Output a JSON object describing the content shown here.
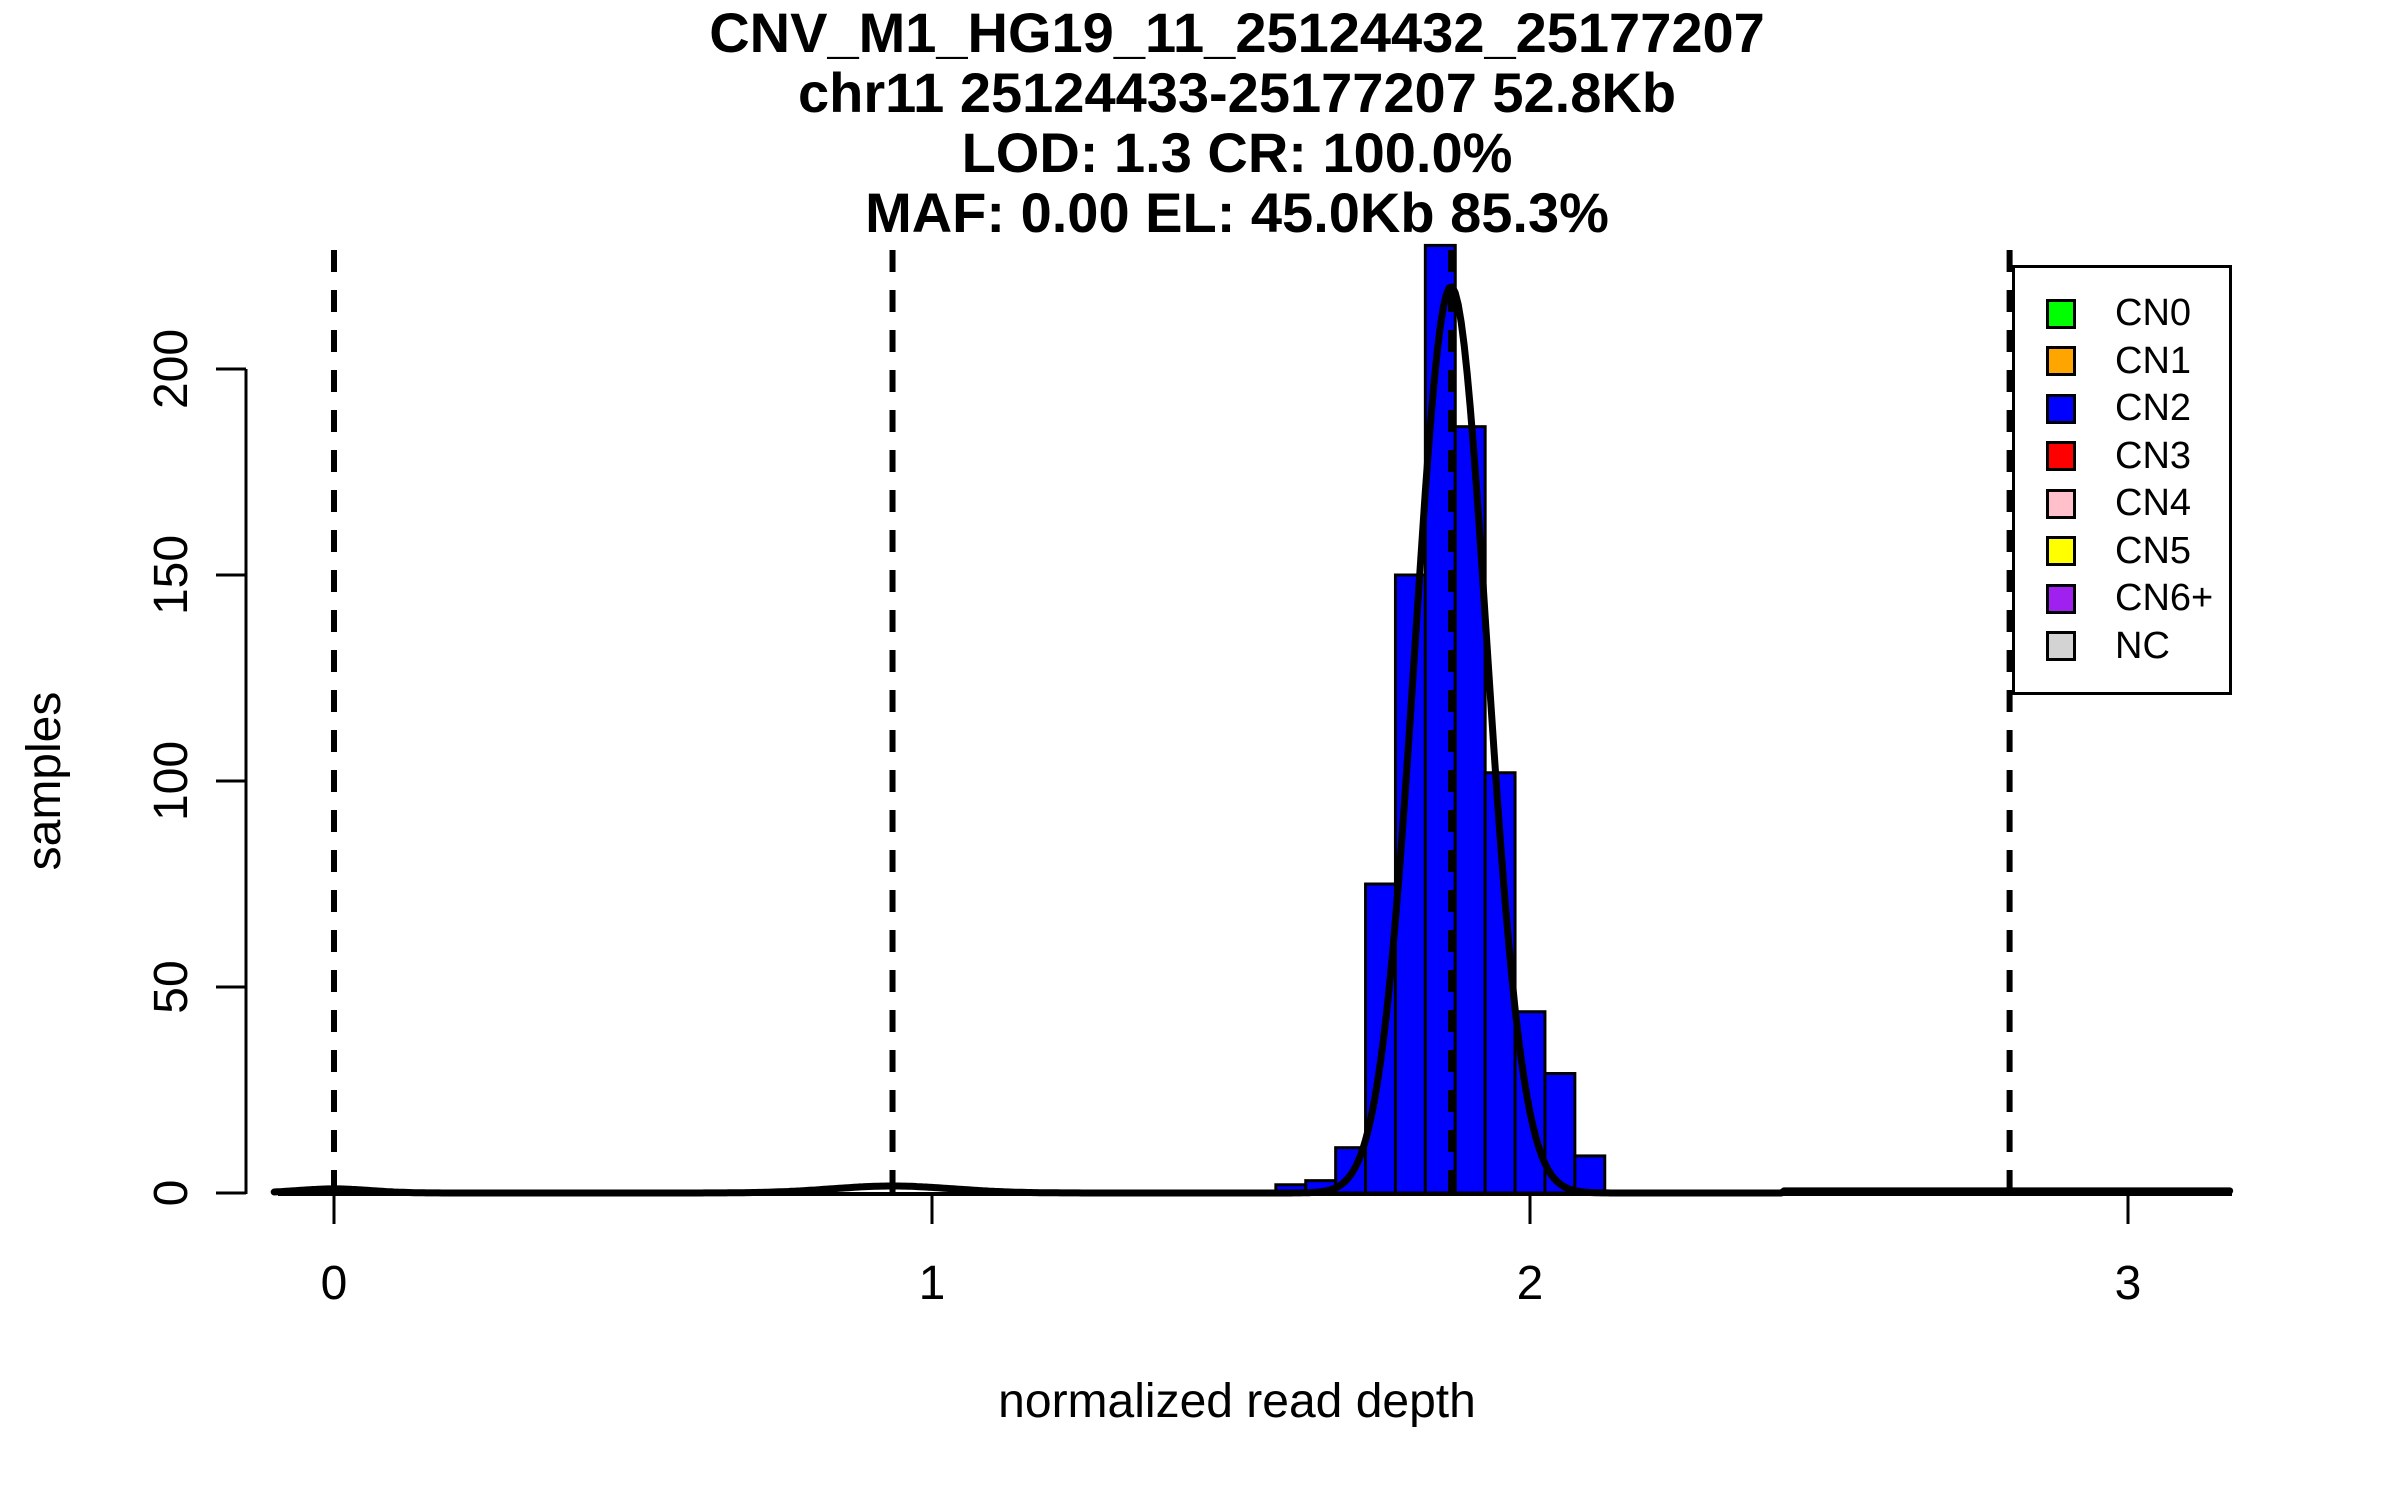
{
  "chart_data": {
    "type": "bar",
    "subtype": "histogram-with-density",
    "titles": {
      "line1": "CNV_M1_HG19_11_25124432_25177207",
      "line2": "chr11 25124433-25177207 52.8Kb",
      "line3": "LOD: 1.3 CR: 100.0%",
      "line4": "MAF: 0.00 EL: 45.0Kb 85.3%"
    },
    "xlabel": "normalized read depth",
    "ylabel": "samples",
    "x_ticks": [
      0,
      1,
      2,
      3
    ],
    "y_ticks": [
      0,
      50,
      100,
      150,
      200
    ],
    "xlim": [
      -0.15,
      3.25
    ],
    "ylim": [
      0,
      235
    ],
    "grid": false,
    "legend_position": "top-right",
    "histogram": {
      "bin_start": 1.575,
      "bin_width": 0.05,
      "counts": [
        2,
        3,
        11,
        75,
        150,
        230,
        186,
        102,
        44,
        29,
        9
      ],
      "bar_color": "#0000FF",
      "bar_border_color": "#000000"
    },
    "cn_marker_lines_x": [
      0,
      0.934,
      1.868,
      2.802
    ],
    "density_curve": {
      "color": "#000000",
      "x_range": [
        -0.1,
        3.17
      ],
      "components": [
        {
          "mu": 1.868,
          "sigma": 0.06,
          "amp": 220
        },
        {
          "mu": 0.934,
          "sigma": 0.1,
          "amp": 1.7
        },
        {
          "mu": 0.0,
          "sigma": 0.06,
          "amp": 1.0
        }
      ],
      "baseline_offset": {
        "from": 2.42,
        "to": 3.17,
        "amp": 0.5
      }
    }
  },
  "legend": {
    "items": [
      {
        "label": "CN0",
        "color": "#00FF00"
      },
      {
        "label": "CN1",
        "color": "#FFA500"
      },
      {
        "label": "CN2",
        "color": "#0000FF"
      },
      {
        "label": "CN3",
        "color": "#FF0000"
      },
      {
        "label": "CN4",
        "color": "#FFC0CB"
      },
      {
        "label": "CN5",
        "color": "#FFFF00"
      },
      {
        "label": "CN6+",
        "color": "#A020F0"
      },
      {
        "label": "NC",
        "color": "#D3D3D3"
      }
    ]
  }
}
